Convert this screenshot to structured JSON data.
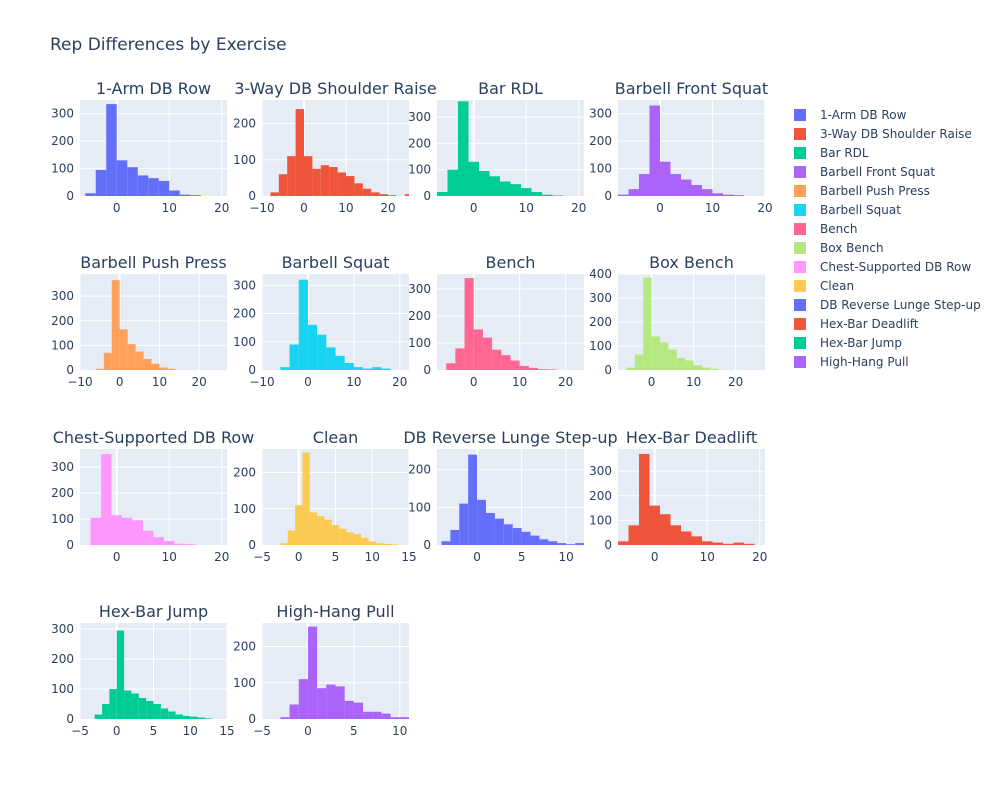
{
  "chart_data": {
    "type": "bar",
    "title": "Rep Differences by Exercise",
    "legend_placement": "right",
    "grid": true,
    "layout": {
      "rows": 4,
      "cols": 4
    },
    "subplots": [
      {
        "name": "1-Arm DB Row",
        "color": "#636efa",
        "xlim": [
          -7,
          21
        ],
        "ylim": [
          0,
          350
        ],
        "xticks": [
          0,
          10,
          20
        ],
        "yticks": [
          0,
          100,
          200,
          300
        ],
        "bin_start": -6,
        "bin_width": 2,
        "counts": [
          10,
          95,
          335,
          130,
          105,
          75,
          65,
          55,
          20,
          5,
          3
        ]
      },
      {
        "name": "3-Way DB Shoulder Raise",
        "color": "#EF553B",
        "xlim": [
          -10,
          25
        ],
        "ylim": [
          0,
          265
        ],
        "xticks": [
          -10,
          0,
          10,
          20
        ],
        "yticks": [
          0,
          100,
          200
        ],
        "bin_start": -8,
        "bin_width": 2,
        "counts": [
          10,
          60,
          110,
          240,
          110,
          75,
          85,
          80,
          65,
          55,
          35,
          20,
          10,
          5,
          2,
          0,
          5
        ]
      },
      {
        "name": "Bar RDL",
        "color": "#00cc96",
        "xlim": [
          -7,
          21
        ],
        "ylim": [
          0,
          365
        ],
        "xticks": [
          0,
          10,
          20
        ],
        "yticks": [
          0,
          100,
          200,
          300
        ],
        "bin_start": -7,
        "bin_width": 2,
        "counts": [
          15,
          100,
          360,
          130,
          95,
          75,
          55,
          45,
          30,
          15,
          5,
          2
        ]
      },
      {
        "name": "Barbell Front Squat",
        "color": "#ab63fa",
        "xlim": [
          -8,
          20
        ],
        "ylim": [
          0,
          350
        ],
        "xticks": [
          0,
          10,
          20
        ],
        "yticks": [
          0,
          100,
          200,
          300
        ],
        "bin_start": -8,
        "bin_width": 2,
        "counts": [
          5,
          25,
          80,
          330,
          125,
          80,
          60,
          40,
          25,
          10,
          5,
          3
        ]
      },
      {
        "name": "Barbell Push Press",
        "color": "#FFA15A",
        "xlim": [
          -10,
          27
        ],
        "ylim": [
          0,
          390
        ],
        "xticks": [
          -10,
          0,
          10,
          20
        ],
        "yticks": [
          0,
          100,
          200,
          300
        ],
        "bin_start": -6,
        "bin_width": 2,
        "counts": [
          5,
          70,
          365,
          165,
          105,
          75,
          45,
          25,
          10,
          5
        ]
      },
      {
        "name": "Barbell Squat",
        "color": "#19d3f3",
        "xlim": [
          -10,
          22
        ],
        "ylim": [
          0,
          340
        ],
        "xticks": [
          -10,
          0,
          10,
          20
        ],
        "yticks": [
          0,
          100,
          200,
          300
        ],
        "bin_start": -6,
        "bin_width": 2,
        "counts": [
          10,
          90,
          320,
          160,
          125,
          80,
          50,
          25,
          10,
          5,
          10,
          5
        ]
      },
      {
        "name": "Bench",
        "color": "#FF6692",
        "xlim": [
          -8,
          24
        ],
        "ylim": [
          0,
          355
        ],
        "xticks": [
          0,
          10,
          20
        ],
        "yticks": [
          0,
          100,
          200,
          300
        ],
        "bin_start": -6,
        "bin_width": 2,
        "counts": [
          25,
          80,
          340,
          150,
          120,
          75,
          55,
          35,
          15,
          8,
          3,
          2
        ]
      },
      {
        "name": "Box Bench",
        "color": "#B6E880",
        "xlim": [
          -8,
          27
        ],
        "ylim": [
          0,
          400
        ],
        "xticks": [
          0,
          10,
          20
        ],
        "yticks": [
          0,
          100,
          200,
          300,
          400
        ],
        "bin_start": -6,
        "bin_width": 2,
        "counts": [
          10,
          65,
          385,
          140,
          115,
          85,
          50,
          40,
          20,
          10,
          5
        ]
      },
      {
        "name": "Chest-Supported DB Row",
        "color": "#FF97FF",
        "xlim": [
          -7,
          21
        ],
        "ylim": [
          0,
          370
        ],
        "xticks": [
          0,
          10,
          20
        ],
        "yticks": [
          0,
          100,
          200,
          300
        ],
        "bin_start": -5,
        "bin_width": 2,
        "counts": [
          105,
          350,
          115,
          105,
          95,
          55,
          30,
          15,
          5,
          3
        ]
      },
      {
        "name": "Clean",
        "color": "#FECB52",
        "xlim": [
          -5,
          15
        ],
        "ylim": [
          0,
          265
        ],
        "xticks": [
          -5,
          0,
          5,
          10,
          15
        ],
        "yticks": [
          0,
          100,
          200
        ],
        "bin_start": -2.5,
        "bin_width": 1,
        "counts": [
          5,
          40,
          110,
          255,
          90,
          80,
          70,
          55,
          45,
          35,
          30,
          20,
          10,
          5,
          3,
          2
        ]
      },
      {
        "name": "DB Reverse Lunge Step-up",
        "color": "#636efa",
        "xlim": [
          -4.5,
          12
        ],
        "ylim": [
          0,
          255
        ],
        "xticks": [
          0,
          5,
          10
        ],
        "yticks": [
          0,
          100,
          200
        ],
        "bin_start": -4,
        "bin_width": 1,
        "counts": [
          10,
          40,
          110,
          240,
          120,
          85,
          70,
          55,
          45,
          35,
          25,
          15,
          10,
          5,
          2,
          5
        ]
      },
      {
        "name": "Hex-Bar Deadlift",
        "color": "#EF553B",
        "xlim": [
          -7,
          21
        ],
        "ylim": [
          0,
          390
        ],
        "xticks": [
          0,
          10,
          20
        ],
        "yticks": [
          0,
          100,
          200,
          300
        ],
        "bin_start": -7,
        "bin_width": 2,
        "counts": [
          15,
          80,
          370,
          160,
          125,
          80,
          55,
          35,
          15,
          10,
          5,
          10,
          5
        ]
      },
      {
        "name": "Hex-Bar Jump",
        "color": "#00cc96",
        "xlim": [
          -5,
          15
        ],
        "ylim": [
          0,
          320
        ],
        "xticks": [
          -5,
          0,
          5,
          10,
          15
        ],
        "yticks": [
          0,
          100,
          200,
          300
        ],
        "bin_start": -3,
        "bin_width": 1,
        "counts": [
          15,
          50,
          100,
          295,
          95,
          85,
          70,
          60,
          50,
          35,
          25,
          15,
          10,
          8,
          5,
          2
        ]
      },
      {
        "name": "High-Hang Pull",
        "color": "#ab63fa",
        "xlim": [
          -5,
          11
        ],
        "ylim": [
          0,
          265
        ],
        "xticks": [
          -5,
          0,
          5,
          10
        ],
        "yticks": [
          0,
          100,
          200
        ],
        "bin_start": -3,
        "bin_width": 1,
        "counts": [
          5,
          40,
          110,
          255,
          85,
          95,
          90,
          50,
          45,
          20,
          20,
          15,
          5,
          5
        ]
      }
    ]
  }
}
